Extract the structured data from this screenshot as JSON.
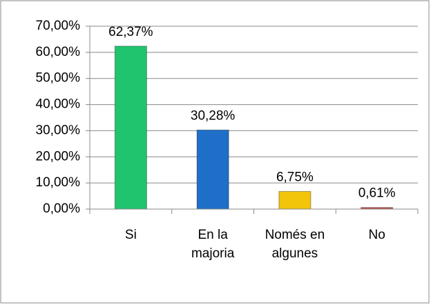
{
  "chart_data": {
    "type": "bar",
    "categories": [
      "Si",
      "En la majoria",
      "Només en algunes",
      "No"
    ],
    "values": [
      62.37,
      30.28,
      6.75,
      0.61
    ],
    "value_labels": [
      "62,37%",
      "30,28%",
      "6,75%",
      "0,61%"
    ],
    "colors": [
      "#21c46e",
      "#1f6fc8",
      "#f2c40a",
      "#c0504d"
    ],
    "ylim": [
      0,
      70
    ],
    "yticks": [
      {
        "value": 0,
        "label": "0,00%"
      },
      {
        "value": 10,
        "label": "10,00%"
      },
      {
        "value": 20,
        "label": "20,00%"
      },
      {
        "value": 30,
        "label": "30,00%"
      },
      {
        "value": 40,
        "label": "40,00%"
      },
      {
        "value": 50,
        "label": "50,00%"
      },
      {
        "value": 60,
        "label": "60,00%"
      },
      {
        "value": 70,
        "label": "70,00%"
      }
    ],
    "grid": true
  }
}
